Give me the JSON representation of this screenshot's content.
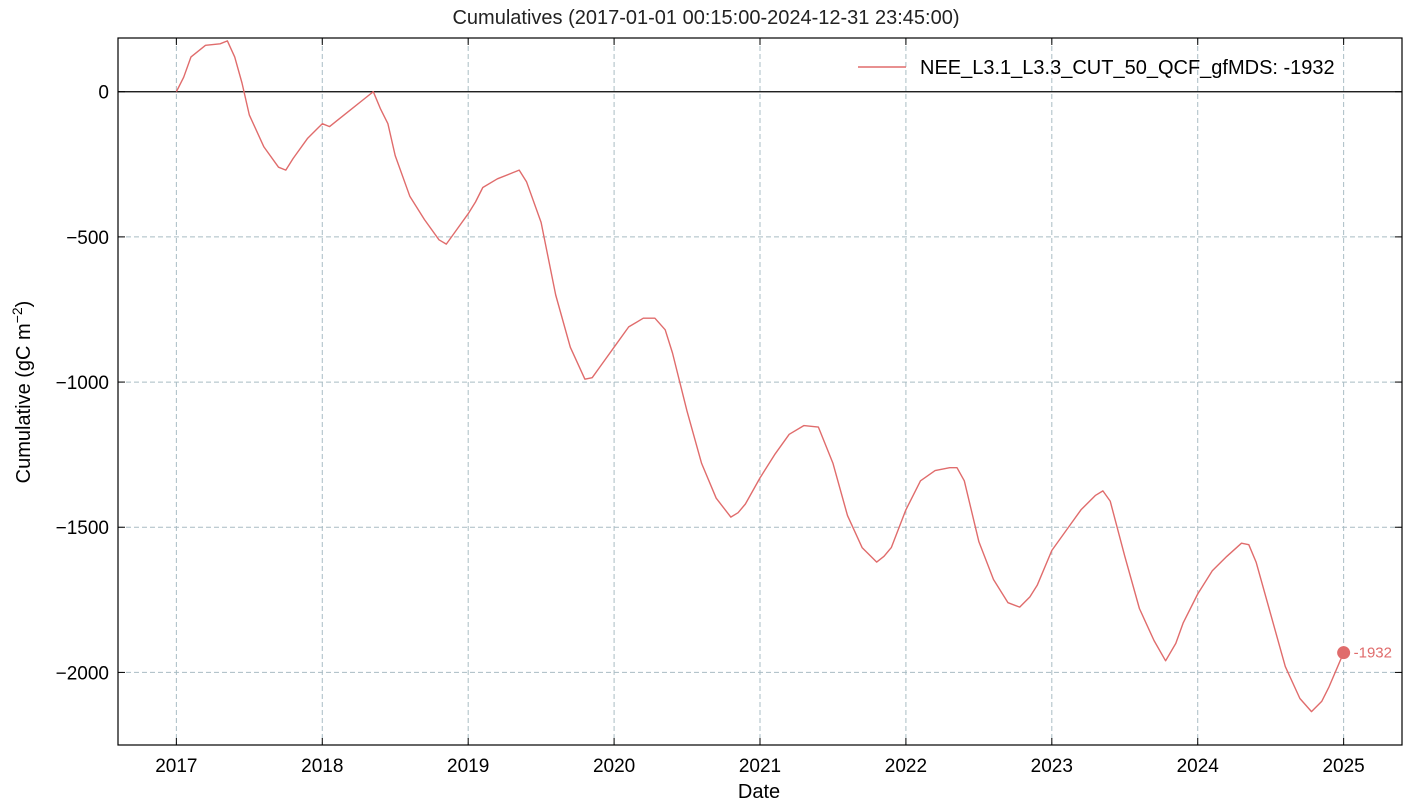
{
  "chart_data": {
    "type": "line",
    "title": "Cumulatives (2017-01-01 00:15:00-2024-12-31 23:45:00)",
    "xlabel": "Date",
    "ylabel": "Cumulative  (gC m",
    "ylabel_sup": "−2",
    "ylabel_close": ")",
    "xlim": [
      2016.6,
      2025.4
    ],
    "ylim": [
      -2250,
      185
    ],
    "x_ticks": [
      2017,
      2018,
      2019,
      2020,
      2021,
      2022,
      2023,
      2024,
      2025
    ],
    "x_tick_labels": [
      "2017",
      "2018",
      "2019",
      "2020",
      "2021",
      "2022",
      "2023",
      "2024",
      "2025"
    ],
    "y_ticks": [
      0,
      -500,
      -1000,
      -1500,
      -2000
    ],
    "y_tick_labels": [
      "0",
      "−500",
      "−1000",
      "−1500",
      "−2000"
    ],
    "grid": true,
    "zero_line": true,
    "legend_position": "top-right",
    "series": [
      {
        "name": "NEE_L3.1_L3.3_CUT_50_QCF_gfMDS: -1932",
        "color": "#e06c6c",
        "x": [
          2017.0,
          2017.05,
          2017.1,
          2017.2,
          2017.3,
          2017.35,
          2017.4,
          2017.45,
          2017.5,
          2017.6,
          2017.7,
          2017.75,
          2017.8,
          2017.9,
          2018.0,
          2018.05,
          2018.1,
          2018.2,
          2018.3,
          2018.35,
          2018.4,
          2018.45,
          2018.5,
          2018.6,
          2018.7,
          2018.8,
          2018.85,
          2018.9,
          2019.0,
          2019.05,
          2019.1,
          2019.2,
          2019.3,
          2019.35,
          2019.4,
          2019.5,
          2019.6,
          2019.7,
          2019.8,
          2019.85,
          2019.9,
          2020.0,
          2020.1,
          2020.2,
          2020.28,
          2020.35,
          2020.4,
          2020.5,
          2020.6,
          2020.7,
          2020.8,
          2020.85,
          2020.9,
          2021.0,
          2021.1,
          2021.2,
          2021.3,
          2021.4,
          2021.5,
          2021.6,
          2021.7,
          2021.8,
          2021.85,
          2021.9,
          2022.0,
          2022.1,
          2022.2,
          2022.3,
          2022.35,
          2022.4,
          2022.5,
          2022.6,
          2022.7,
          2022.78,
          2022.85,
          2022.9,
          2023.0,
          2023.1,
          2023.2,
          2023.3,
          2023.35,
          2023.4,
          2023.5,
          2023.6,
          2023.7,
          2023.78,
          2023.85,
          2023.9,
          2024.0,
          2024.1,
          2024.2,
          2024.3,
          2024.35,
          2024.4,
          2024.5,
          2024.6,
          2024.7,
          2024.78,
          2024.85,
          2024.9,
          2025.0
        ],
        "y": [
          0,
          50,
          120,
          160,
          165,
          175,
          120,
          30,
          -80,
          -190,
          -260,
          -270,
          -230,
          -160,
          -110,
          -120,
          -100,
          -60,
          -20,
          0,
          -60,
          -110,
          -220,
          -360,
          -440,
          -510,
          -525,
          -490,
          -420,
          -380,
          -330,
          -300,
          -280,
          -270,
          -310,
          -450,
          -700,
          -880,
          -990,
          -985,
          -950,
          -880,
          -810,
          -780,
          -780,
          -820,
          -900,
          -1100,
          -1280,
          -1400,
          -1465,
          -1450,
          -1420,
          -1330,
          -1250,
          -1180,
          -1150,
          -1155,
          -1280,
          -1460,
          -1570,
          -1620,
          -1600,
          -1570,
          -1440,
          -1340,
          -1305,
          -1295,
          -1295,
          -1340,
          -1550,
          -1680,
          -1760,
          -1775,
          -1740,
          -1700,
          -1580,
          -1510,
          -1440,
          -1390,
          -1375,
          -1410,
          -1600,
          -1780,
          -1890,
          -1960,
          -1900,
          -1830,
          -1730,
          -1650,
          -1600,
          -1555,
          -1560,
          -1620,
          -1800,
          -1980,
          -2090,
          -2135,
          -2100,
          -2050,
          -1932
        ]
      }
    ],
    "end_marker": {
      "x": 2025.0,
      "y": -1932,
      "label": "-1932"
    }
  }
}
